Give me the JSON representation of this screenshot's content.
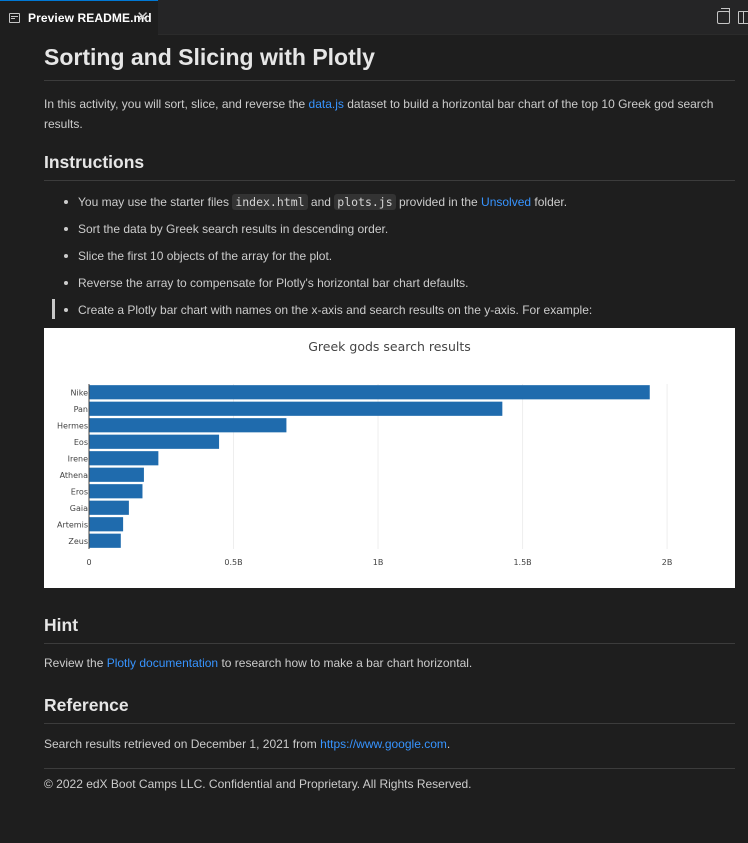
{
  "tab": {
    "title": "Preview README.md",
    "close_glyph": "✕",
    "icon": "preview-icon"
  },
  "toolbar": {
    "open_source_icon": "open-source-icon",
    "split_editor_icon": "split-editor-icon"
  },
  "doc": {
    "title": "Sorting and Slicing with Plotly",
    "intro_before": "In this activity, you will sort, slice, and reverse the ",
    "intro_link": "data.js",
    "intro_after": " dataset to build a horizontal bar chart of the top 10 Greek god search results.",
    "instructions_heading": "Instructions",
    "steps": {
      "s1_before": "You may use the starter files ",
      "s1_code1": "index.html",
      "s1_mid": " and ",
      "s1_code2": "plots.js",
      "s1_mid2": " provided in the ",
      "s1_link": "Unsolved",
      "s1_after": " folder.",
      "s2": "Sort the data by Greek search results in descending order.",
      "s3": "Slice the first 10 objects of the array for the plot.",
      "s4": "Reverse the array to compensate for Plotly's horizontal bar chart defaults.",
      "s5": "Create a Plotly bar chart with names on the x-axis and search results on the y-axis. For example:"
    },
    "hint_heading": "Hint",
    "hint_before": "Review the ",
    "hint_link": "Plotly documentation",
    "hint_after": " to research how to make a bar chart horizontal.",
    "reference_heading": "Reference",
    "reference_before": "Search results retrieved on December 1, 2021 from ",
    "reference_link": "https://www.google.com",
    "reference_after": ".",
    "copyright": "© 2022 edX Boot Camps LLC. Confidential and Proprietary. All Rights Reserved."
  },
  "colors": {
    "background": "#1e1e1e",
    "link": "#3794ff",
    "bar": "#1f6bad",
    "chart_bg": "#ffffff"
  },
  "chart_data": {
    "type": "bar",
    "orientation": "horizontal",
    "title": "Greek gods search results",
    "categories": [
      "Nike",
      "Pan",
      "Hermes",
      "Eos",
      "Irene",
      "Athena",
      "Eros",
      "Gaia",
      "Artemis",
      "Zeus"
    ],
    "values": [
      1940000000,
      1430000000,
      683000000,
      450000000,
      240000000,
      190000000,
      185000000,
      138000000,
      118000000,
      110000000
    ],
    "xlim": [
      0,
      2100000000
    ],
    "xticks": [
      0,
      500000000,
      1000000000,
      1500000000,
      2000000000
    ],
    "xtick_labels": [
      "0",
      "0.5B",
      "1B",
      "1.5B",
      "2B"
    ],
    "grid": "vertical",
    "legend": "none"
  }
}
